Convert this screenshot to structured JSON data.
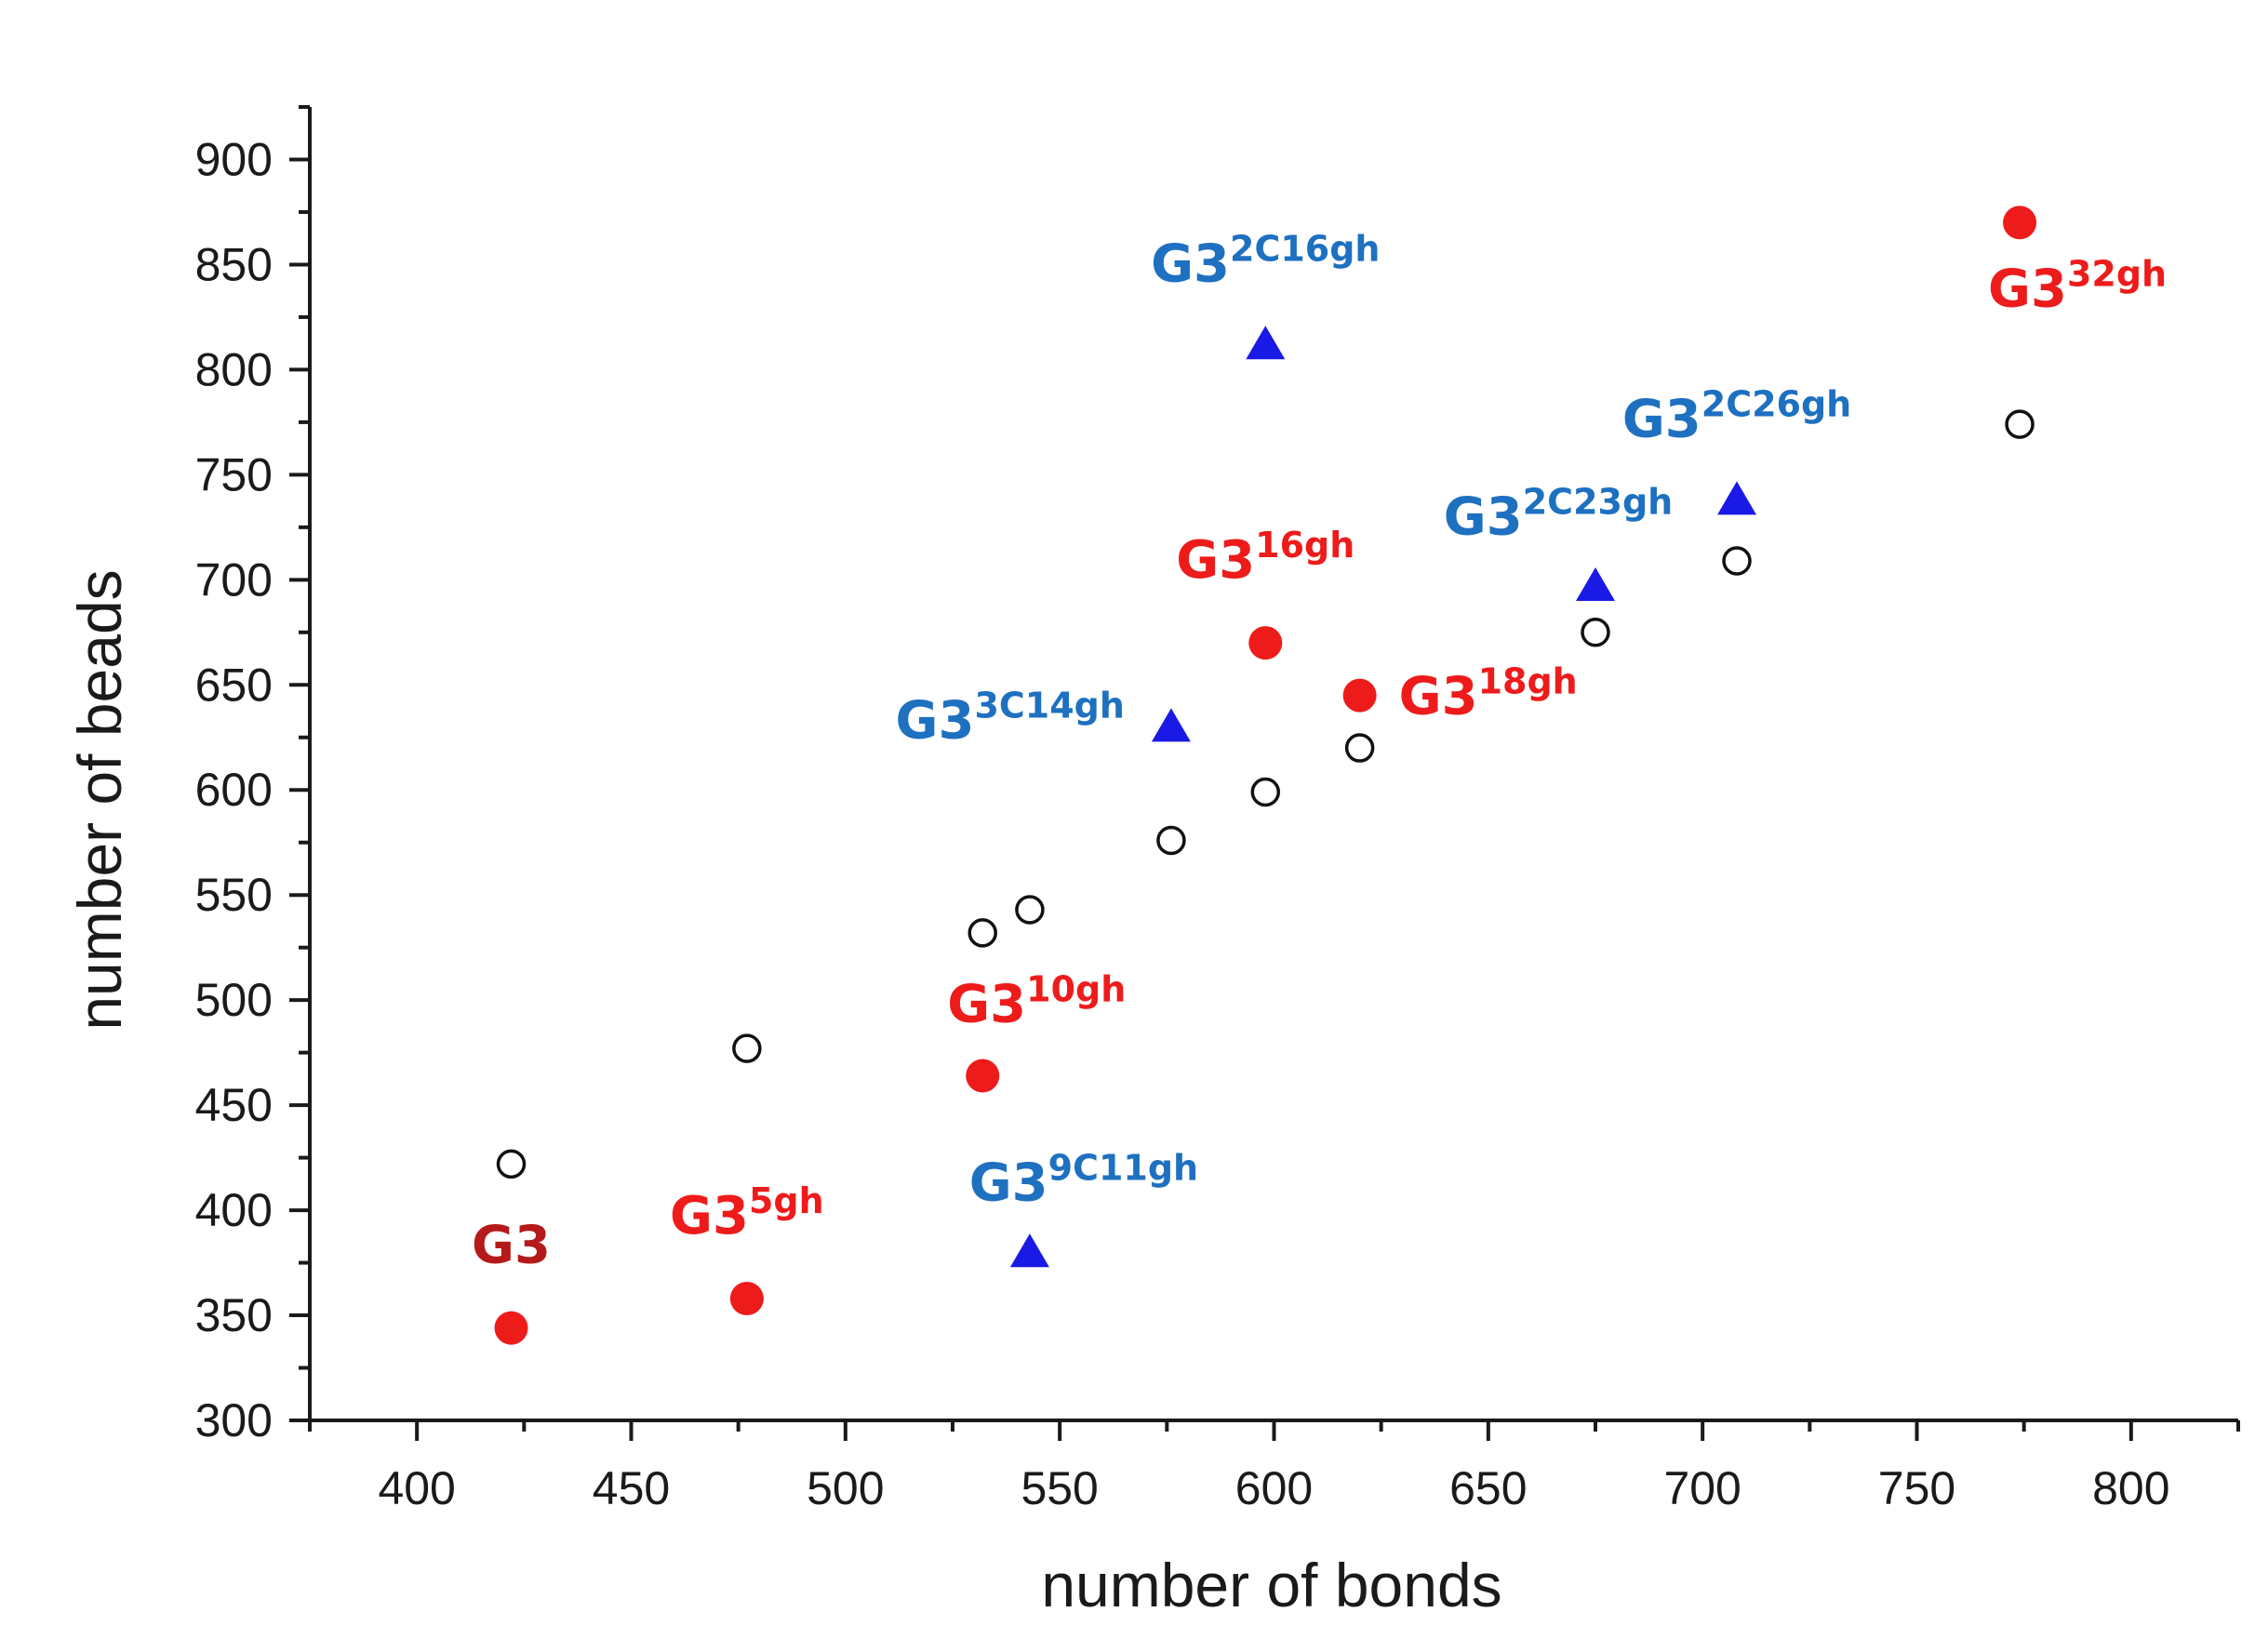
{
  "colors": {
    "red": "#ee1b1b",
    "darkred": "#b51a1a",
    "blue": "#1a1ae6",
    "label_blue": "#1e70c0",
    "axis": "#1a1a1a"
  },
  "chart_data": {
    "type": "scatter",
    "title": "",
    "xlabel": "number of bonds",
    "ylabel": "number of beads",
    "xlim": [
      375,
      825
    ],
    "ylim": [
      300,
      925
    ],
    "xticks": [
      400,
      450,
      500,
      550,
      600,
      650,
      700,
      750,
      800
    ],
    "yticks": [
      300,
      350,
      400,
      450,
      500,
      550,
      600,
      650,
      700,
      750,
      800,
      850,
      900
    ],
    "series": [
      {
        "name": "open circles",
        "marker": "open-circle",
        "points": [
          {
            "x": 422,
            "y": 422
          },
          {
            "x": 477,
            "y": 477
          },
          {
            "x": 532,
            "y": 532
          },
          {
            "x": 543,
            "y": 543
          },
          {
            "x": 576,
            "y": 576
          },
          {
            "x": 598,
            "y": 599
          },
          {
            "x": 620,
            "y": 620
          },
          {
            "x": 675,
            "y": 675
          },
          {
            "x": 708,
            "y": 709
          },
          {
            "x": 774,
            "y": 774
          }
        ]
      },
      {
        "name": "red filled circles",
        "marker": "filled-circle",
        "color": "#ee1b1b",
        "points": [
          {
            "x": 422,
            "y": 344
          },
          {
            "x": 477,
            "y": 358
          },
          {
            "x": 532,
            "y": 464
          },
          {
            "x": 598,
            "y": 670
          },
          {
            "x": 620,
            "y": 645
          },
          {
            "x": 774,
            "y": 870
          }
        ]
      },
      {
        "name": "blue triangles",
        "marker": "triangle",
        "color": "#1a1ae6",
        "points": [
          {
            "x": 543,
            "y": 379
          },
          {
            "x": 576,
            "y": 629
          },
          {
            "x": 598,
            "y": 811
          },
          {
            "x": 675,
            "y": 696
          },
          {
            "x": 708,
            "y": 737
          }
        ]
      }
    ],
    "annotations": [
      {
        "base": "G3",
        "sup": "",
        "x": 422,
        "y": 344,
        "color": "#b51a1a",
        "position": "above"
      },
      {
        "base": "G3",
        "sup": "5gh",
        "x": 477,
        "y": 358,
        "color": "#ee1b1b",
        "position": "above"
      },
      {
        "base": "G3",
        "sup": "10gh",
        "x": 532,
        "y": 464,
        "color": "#ee1b1b",
        "position": "above-right"
      },
      {
        "base": "G3",
        "sup": "16gh",
        "x": 598,
        "y": 670,
        "color": "#ee1b1b",
        "position": "above"
      },
      {
        "base": "G3",
        "sup": "18gh",
        "x": 620,
        "y": 645,
        "color": "#ee1b1b",
        "position": "right"
      },
      {
        "base": "G3",
        "sup": "32gh",
        "x": 774,
        "y": 870,
        "color": "#ee1b1b",
        "position": "below"
      },
      {
        "base": "G3",
        "sup": "9C11gh",
        "x": 543,
        "y": 379,
        "color": "#1e70c0",
        "position": "above-right"
      },
      {
        "base": "G3",
        "sup": "3C14gh",
        "x": 576,
        "y": 629,
        "color": "#1e70c0",
        "position": "left"
      },
      {
        "base": "G3",
        "sup": "2C16gh",
        "x": 598,
        "y": 811,
        "color": "#1e70c0",
        "position": "above"
      },
      {
        "base": "G3",
        "sup": "2C23gh",
        "x": 675,
        "y": 696,
        "color": "#1e70c0",
        "position": "above-left"
      },
      {
        "base": "G3",
        "sup": "2C26gh",
        "x": 708,
        "y": 737,
        "color": "#1e70c0",
        "position": "above"
      }
    ]
  }
}
